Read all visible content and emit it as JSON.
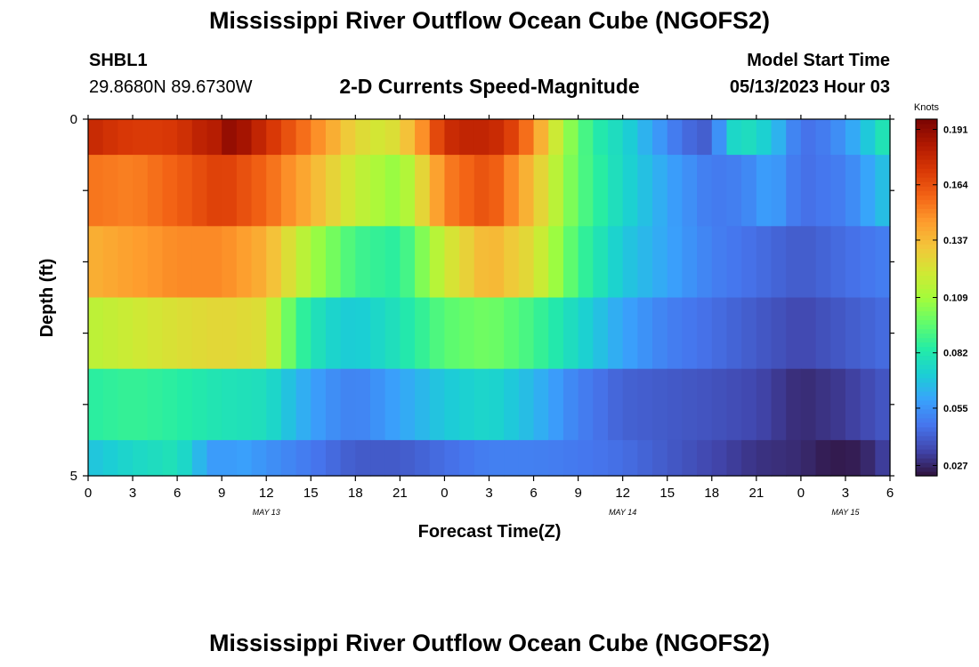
{
  "figure": {
    "title": "Mississippi River Outflow Ocean Cube (NGOFS2)",
    "station": "SHBL1",
    "coordinates": "29.8680N  89.6730W",
    "subtitle": "2-D Currents Speed-Magnitude",
    "model_start_label": "Model Start Time",
    "model_start_value": "05/13/2023 Hour 03",
    "repeated_title": "Mississippi River Outflow Ocean Cube (NGOFS2)"
  },
  "colors": {
    "colormap": [
      "#30123b",
      "#4145ab",
      "#4675ed",
      "#39a2fc",
      "#1bcfd4",
      "#24eca6",
      "#61fc6c",
      "#a4fc3b",
      "#d1e834",
      "#f3c63a",
      "#fe9b2d",
      "#f36315",
      "#d93806",
      "#b11901",
      "#7a0402"
    ]
  },
  "chart_data": {
    "type": "heatmap",
    "xlabel": "Forecast Time(Z)",
    "ylabel": "Depth (ft)",
    "x_tick_labels": [
      "0",
      "3",
      "6",
      "9",
      "12",
      "15",
      "18",
      "21",
      "0",
      "3",
      "6",
      "9",
      "12",
      "15",
      "18",
      "21",
      "0",
      "3",
      "6"
    ],
    "x_hours": [
      0,
      3,
      6,
      9,
      12,
      15,
      18,
      21,
      24,
      27,
      30,
      33,
      36,
      39,
      42,
      45,
      48,
      51,
      54
    ],
    "xlim": [
      0,
      54
    ],
    "date_labels": [
      {
        "text": "MAY 13",
        "hour": 12
      },
      {
        "text": "MAY 14",
        "hour": 36
      },
      {
        "text": "MAY 15",
        "hour": 51
      }
    ],
    "y_tick_labels": [
      "0",
      "5"
    ],
    "ylim": [
      0,
      5
    ],
    "colorbar": {
      "units": "Knots",
      "tick_labels": [
        "0.191",
        "0.164",
        "0.137",
        "0.109",
        "0.082",
        "0.055",
        "0.027"
      ],
      "tick_values": [
        0.191,
        0.164,
        0.137,
        0.109,
        0.082,
        0.055,
        0.027
      ],
      "range": [
        0.022,
        0.196
      ]
    },
    "layers": [
      {
        "depth_top": 0,
        "depth_bottom": 0.5,
        "hours": [
          0,
          2,
          4,
          6,
          8,
          9,
          10,
          12,
          14,
          16,
          18,
          20,
          22,
          24,
          26,
          28,
          30,
          32,
          34,
          36,
          38,
          40,
          42,
          43,
          44,
          46,
          48,
          50,
          52,
          54
        ],
        "values": [
          0.178,
          0.172,
          0.17,
          0.172,
          0.182,
          null,
          0.19,
          0.175,
          0.16,
          0.145,
          0.128,
          0.12,
          0.14,
          0.175,
          0.18,
          0.175,
          0.15,
          0.11,
          0.085,
          0.075,
          0.06,
          0.045,
          0.04,
          0.07,
          0.08,
          0.07,
          0.045,
          0.05,
          0.065,
          0.085
        ]
      },
      {
        "depth_top": 0.5,
        "depth_bottom": 1.5,
        "hours": [
          0,
          3,
          6,
          9,
          12,
          15,
          18,
          21,
          24,
          27,
          30,
          33,
          36,
          39,
          42,
          44,
          46,
          48,
          51,
          54
        ],
        "values": [
          0.155,
          0.152,
          0.16,
          0.17,
          0.158,
          0.14,
          0.118,
          0.105,
          0.152,
          0.165,
          0.135,
          0.095,
          0.075,
          0.06,
          0.048,
          0.05,
          0.06,
          0.045,
          0.05,
          0.07
        ]
      },
      {
        "depth_top": 1.5,
        "depth_bottom": 2.5,
        "hours": [
          0,
          3,
          6,
          9,
          12,
          15,
          18,
          21,
          24,
          27,
          30,
          33,
          36,
          39,
          42,
          45,
          48,
          51,
          54
        ],
        "values": [
          0.14,
          0.145,
          0.15,
          0.15,
          0.14,
          0.11,
          0.09,
          0.085,
          0.12,
          0.14,
          0.125,
          0.09,
          0.07,
          0.06,
          0.05,
          0.045,
          0.04,
          0.045,
          0.05
        ]
      },
      {
        "depth_top": 2.5,
        "depth_bottom": 3.5,
        "hours": [
          0,
          3,
          6,
          9,
          12,
          14,
          16,
          18,
          21,
          24,
          27,
          30,
          33,
          36,
          39,
          42,
          45,
          48,
          51,
          54
        ],
        "values": [
          0.115,
          0.12,
          0.125,
          0.128,
          0.125,
          0.09,
          0.075,
          0.07,
          0.08,
          0.095,
          0.1,
          0.09,
          0.075,
          0.06,
          0.05,
          0.045,
          0.04,
          0.035,
          0.04,
          0.045
        ]
      },
      {
        "depth_top": 3.5,
        "depth_bottom": 4.5,
        "hours": [
          0,
          3,
          6,
          9,
          12,
          14,
          16,
          18,
          21,
          24,
          27,
          30,
          33,
          36,
          39,
          42,
          45,
          48,
          51,
          54
        ],
        "values": [
          0.085,
          0.088,
          0.085,
          0.08,
          0.078,
          0.065,
          0.055,
          0.05,
          0.06,
          0.07,
          0.075,
          0.065,
          0.05,
          0.042,
          0.04,
          0.038,
          0.035,
          0.028,
          0.032,
          0.04
        ]
      },
      {
        "depth_top": 4.5,
        "depth_bottom": 5,
        "hours": [
          0,
          3,
          6,
          8,
          9,
          10,
          12,
          15,
          18,
          21,
          24,
          27,
          30,
          33,
          36,
          39,
          42,
          45,
          48,
          50,
          52,
          54
        ],
        "values": [
          0.068,
          0.075,
          0.08,
          0.06,
          0.055,
          0.06,
          0.055,
          0.048,
          0.04,
          0.04,
          0.045,
          0.05,
          0.05,
          0.048,
          0.045,
          0.04,
          0.035,
          0.03,
          0.028,
          0.024,
          0.025,
          0.035
        ]
      }
    ]
  }
}
